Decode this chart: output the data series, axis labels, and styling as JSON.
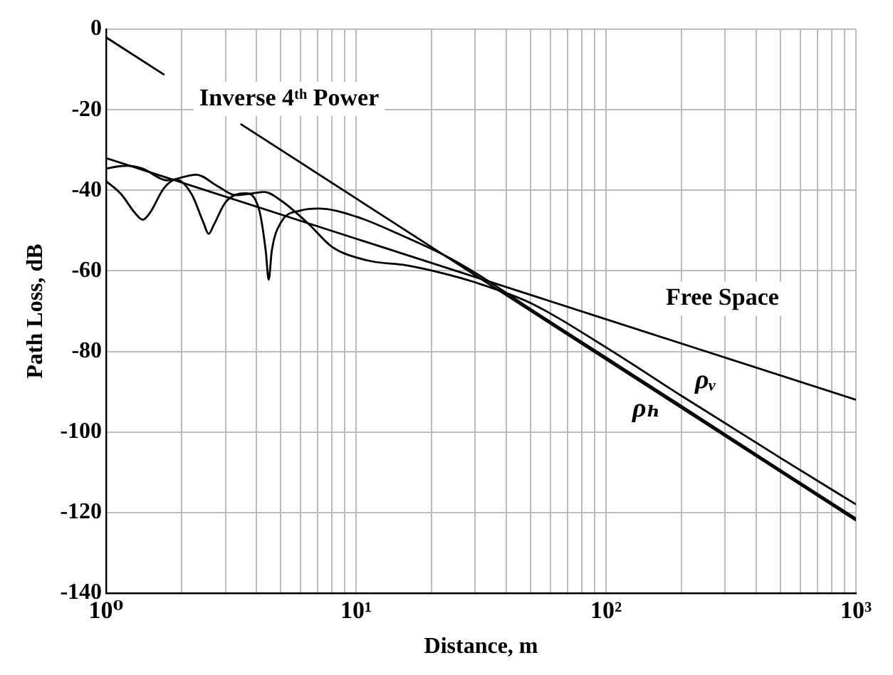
{
  "chart_data": {
    "type": "line",
    "xlabel": "Distance, m",
    "ylabel": "Path Loss, dB",
    "xlim": [
      1,
      1000
    ],
    "ylim": [
      -140,
      0
    ],
    "xticks": [
      {
        "value": 1,
        "label": "10⁰"
      },
      {
        "value": 2,
        "label": null
      },
      {
        "value": 3,
        "label": null
      },
      {
        "value": 4,
        "label": null
      },
      {
        "value": 5,
        "label": null
      },
      {
        "value": 6,
        "label": null
      },
      {
        "value": 7,
        "label": null
      },
      {
        "value": 8,
        "label": null
      },
      {
        "value": 9,
        "label": null
      },
      {
        "value": 10,
        "label": "10¹"
      },
      {
        "value": 20,
        "label": null
      },
      {
        "value": 30,
        "label": null
      },
      {
        "value": 40,
        "label": null
      },
      {
        "value": 50,
        "label": null
      },
      {
        "value": 60,
        "label": null
      },
      {
        "value": 70,
        "label": null
      },
      {
        "value": 80,
        "label": null
      },
      {
        "value": 90,
        "label": null
      },
      {
        "value": 100,
        "label": "10²"
      },
      {
        "value": 200,
        "label": null
      },
      {
        "value": 300,
        "label": null
      },
      {
        "value": 400,
        "label": null
      },
      {
        "value": 500,
        "label": null
      },
      {
        "value": 600,
        "label": null
      },
      {
        "value": 700,
        "label": null
      },
      {
        "value": 800,
        "label": null
      },
      {
        "value": 900,
        "label": null
      },
      {
        "value": 1000,
        "label": "10³"
      }
    ],
    "yticks": [
      -140,
      -120,
      -100,
      -80,
      -60,
      -40,
      -20,
      0
    ],
    "log": "x",
    "grid": true,
    "legend": false,
    "marker": "none",
    "line_style": "solid",
    "series": [
      {
        "name": "Free Space",
        "color": "#000000",
        "x": [
          1,
          10,
          100,
          1000
        ],
        "values": [
          -32,
          -52,
          -72,
          -92
        ]
      },
      {
        "name": "Inverse 4ᵗʰ Power",
        "color": "#000000",
        "x": [
          1,
          1.71,
          2.5,
          3.45,
          10,
          100,
          1000
        ],
        "values": [
          -2,
          -11.3,
          null,
          -23.5,
          -42,
          -82,
          -122
        ]
      },
      {
        "name": "ρᵥ",
        "color": "#000000",
        "x": [
          1,
          1.1,
          1.22,
          1.4,
          1.75,
          2.29,
          2.8,
          3.3,
          3.8,
          4.3,
          5,
          6.5,
          8,
          11.1,
          15.9,
          22,
          29.8,
          50,
          100,
          200,
          500,
          1000
        ],
        "values": [
          -34.6,
          -34.1,
          -33.9,
          -34.6,
          -37.5,
          -36.1,
          -39,
          -41.2,
          -40.8,
          -40.4,
          -42.5,
          -48.5,
          -54,
          -57.4,
          -58.6,
          -60.5,
          -62.8,
          -68,
          -79,
          -91,
          -106.5,
          -118
        ]
      },
      {
        "name": "ρₕ",
        "color": "#000000",
        "x": [
          1,
          1.15,
          1.3,
          1.4,
          1.5,
          1.7,
          1.91,
          2.2,
          2.45,
          2.57,
          2.7,
          3,
          3.6,
          4.1,
          4.35,
          4.47,
          4.6,
          5,
          6,
          7.08,
          10.1,
          15,
          22.7,
          30,
          50,
          100,
          200,
          500,
          1000
        ],
        "values": [
          -37.7,
          -41,
          -45.5,
          -47.3,
          -45.5,
          -39.5,
          -37.3,
          -41,
          -48,
          -50.8,
          -48.5,
          -43,
          -40.7,
          -45,
          -55,
          -62.2,
          -55,
          -48,
          -45,
          -44.5,
          -46.6,
          -51,
          -56.2,
          -60.5,
          -69.5,
          -81.5,
          -93.5,
          -109.5,
          -121.5
        ]
      }
    ]
  }
}
